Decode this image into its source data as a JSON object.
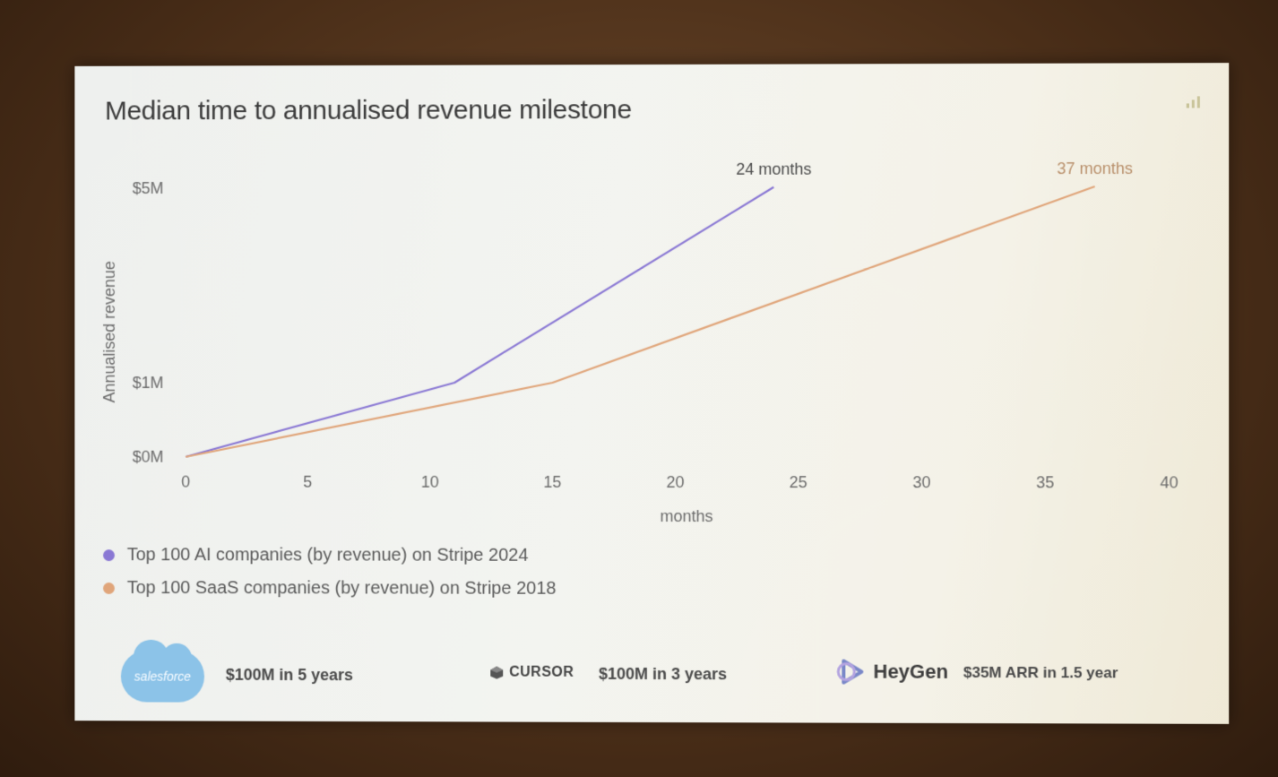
{
  "slide": {
    "title": "Median time to annualised revenue milestone"
  },
  "chart_data": {
    "type": "line",
    "title": "Median time to annualised revenue milestone",
    "xlabel": "months",
    "ylabel": "Annualised revenue",
    "xlim": [
      0,
      40
    ],
    "x_ticks": [
      0,
      5,
      10,
      15,
      20,
      25,
      30,
      35,
      40
    ],
    "y_ticks": [
      {
        "value": 0,
        "label": "$0M"
      },
      {
        "value": 1,
        "label": "$1M"
      },
      {
        "value": 5,
        "label": "$5M"
      }
    ],
    "grid": false,
    "legend_position": "bottom-left",
    "series": [
      {
        "name": "Top 100 AI companies (by revenue) on Stripe 2024",
        "color": "#8a78d4",
        "points": [
          {
            "x": 0,
            "y": 0
          },
          {
            "x": 11,
            "y": 1
          },
          {
            "x": 24,
            "y": 5
          }
        ],
        "end_label": "24 months"
      },
      {
        "name": "Top 100 SaaS companies (by revenue) on Stripe 2018",
        "color": "#e0a57a",
        "points": [
          {
            "x": 0,
            "y": 0
          },
          {
            "x": 15,
            "y": 1
          },
          {
            "x": 37,
            "y": 5
          }
        ],
        "end_label": "37 months"
      }
    ]
  },
  "footer": {
    "items": [
      {
        "logo_text": "salesforce",
        "text": "$100M in 5 years"
      },
      {
        "logo_text": "CURSOR",
        "text": "$100M in 3 years"
      },
      {
        "logo_text": "HeyGen",
        "text": "$35M ARR in 1.5 year"
      }
    ]
  },
  "colors": {
    "ai_series": "#8a78d4",
    "saas_series": "#e0a57a",
    "salesforce_blue": "#8cc3e8"
  }
}
